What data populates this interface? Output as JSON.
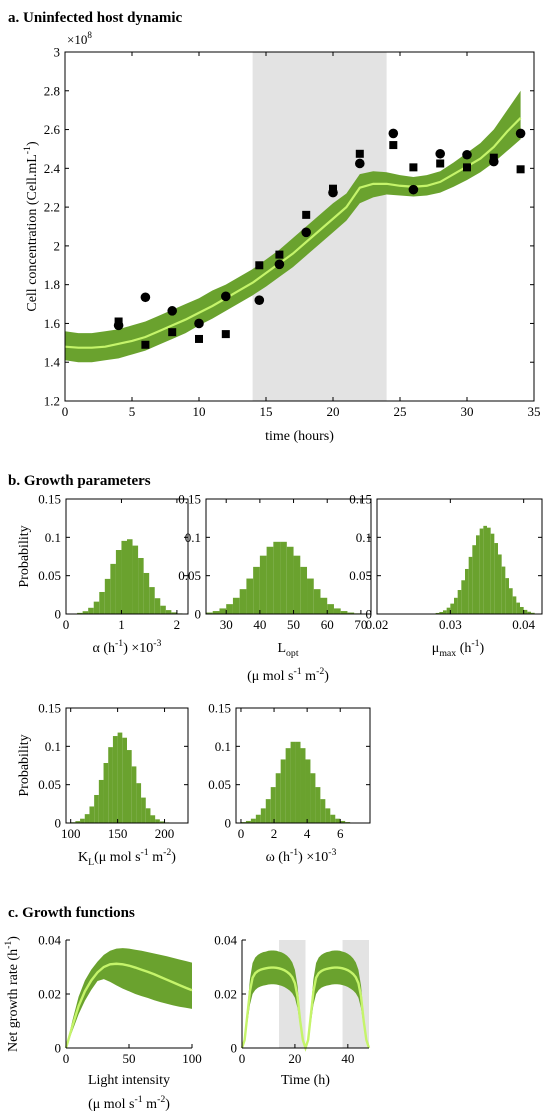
{
  "colors": {
    "band": "#6aa22e",
    "mean": "#c5f46a",
    "shade": "#e3e3e3",
    "bars": "#6aa22e"
  },
  "chart_data": [
    {
      "id": "a",
      "type": "line",
      "title": "a. Uninfected host dynamic",
      "exponent": "×10",
      "exponent_power": "8",
      "xlabel": "time (hours)",
      "ylabel": "Cell concentration (Cell.mL",
      "ylabel_sup": "-1",
      "ylabel_end": ")",
      "xlim": [
        0,
        35
      ],
      "ylim": [
        1.2,
        3.0
      ],
      "xticks": [
        0,
        5,
        10,
        15,
        20,
        25,
        30,
        35
      ],
      "yticks": [
        1.2,
        1.4,
        1.6,
        1.8,
        2,
        2.2,
        2.4,
        2.6,
        2.8,
        3
      ],
      "shaded_x": [
        [
          14,
          24
        ]
      ],
      "model_x": [
        0,
        1,
        2,
        3,
        4,
        5,
        6,
        7,
        8,
        9,
        10,
        11,
        12,
        13,
        14,
        15,
        16,
        17,
        18,
        19,
        20,
        21,
        22,
        23,
        24,
        25,
        26,
        27,
        28,
        29,
        30,
        31,
        32,
        33,
        34
      ],
      "model_mean": [
        1.48,
        1.475,
        1.475,
        1.48,
        1.495,
        1.51,
        1.53,
        1.56,
        1.59,
        1.62,
        1.655,
        1.69,
        1.73,
        1.77,
        1.81,
        1.86,
        1.91,
        1.96,
        2.02,
        2.08,
        2.14,
        2.2,
        2.3,
        2.32,
        2.32,
        2.31,
        2.305,
        2.31,
        2.33,
        2.37,
        2.41,
        2.45,
        2.51,
        2.59,
        2.66
      ],
      "band_lower": [
        1.41,
        1.4,
        1.4,
        1.41,
        1.42,
        1.44,
        1.46,
        1.49,
        1.52,
        1.55,
        1.59,
        1.625,
        1.665,
        1.705,
        1.745,
        1.79,
        1.84,
        1.89,
        1.95,
        2.01,
        2.07,
        2.13,
        2.22,
        2.25,
        2.265,
        2.26,
        2.255,
        2.26,
        2.275,
        2.305,
        2.34,
        2.38,
        2.43,
        2.49,
        2.55
      ],
      "band_upper": [
        1.56,
        1.55,
        1.55,
        1.56,
        1.57,
        1.59,
        1.61,
        1.64,
        1.67,
        1.7,
        1.73,
        1.77,
        1.8,
        1.84,
        1.88,
        1.93,
        1.98,
        2.04,
        2.1,
        2.16,
        2.22,
        2.27,
        2.37,
        2.385,
        2.38,
        2.365,
        2.355,
        2.365,
        2.385,
        2.43,
        2.48,
        2.53,
        2.6,
        2.7,
        2.8
      ],
      "series": [
        {
          "marker": "circle",
          "x": [
            4,
            6,
            8,
            10,
            12,
            14.5,
            16,
            18,
            20,
            22,
            24.5,
            26,
            28,
            30,
            32,
            34
          ],
          "y": [
            1.59,
            1.735,
            1.665,
            1.6,
            1.74,
            1.72,
            1.905,
            2.07,
            2.275,
            2.425,
            2.58,
            2.29,
            2.475,
            2.47,
            2.435,
            2.58
          ]
        },
        {
          "marker": "square",
          "x": [
            4,
            6,
            8,
            10,
            12,
            14.5,
            16,
            18,
            20,
            22,
            24.5,
            26,
            28,
            30,
            32,
            34
          ],
          "y": [
            1.61,
            1.49,
            1.555,
            1.52,
            1.545,
            1.9,
            1.955,
            2.16,
            2.295,
            2.475,
            2.52,
            2.405,
            2.425,
            2.405,
            2.455,
            2.395
          ]
        }
      ]
    },
    {
      "id": "alpha",
      "type": "bar",
      "section_title": "b. Growth parameters",
      "ylabel": "Probability",
      "xlabel": "α (h",
      "xlabel_sup": "-1",
      "xlabel_end": ") ×10",
      "xlabel_sup2": "-3",
      "xlim": [
        0,
        2.2
      ],
      "ylim": [
        0,
        0.15
      ],
      "xticks": [
        0,
        1,
        2
      ],
      "yticks": [
        0,
        0.05,
        0.1,
        0.15
      ],
      "center": 1.12,
      "sd": 0.3,
      "peak": 0.098,
      "bin_width": 0.1
    },
    {
      "id": "lopt",
      "type": "bar",
      "xlabel": "L",
      "xlabel_sub": "opt",
      "xlabel_line2": "(μ mol s",
      "xlabel_line2_sup": "-1",
      "xlabel_line2_mid": " m",
      "xlabel_line2_sup2": "-2",
      "xlabel_line2_end": ")",
      "xlim": [
        24,
        73
      ],
      "ylim": [
        0,
        0.15
      ],
      "xticks": [
        30,
        40,
        50,
        60,
        70
      ],
      "yticks": [
        0,
        0.05,
        0.1,
        0.15
      ],
      "center": 46,
      "sd": 7.5,
      "peak": 0.095,
      "bin_width": 2
    },
    {
      "id": "mumax",
      "type": "bar",
      "xlabel": "μ",
      "xlabel_sub": "max",
      "xlabel_end": " (h",
      "xlabel_sup": "-1",
      "xlabel_end2": ")",
      "xlim": [
        0.02,
        0.0425
      ],
      "ylim": [
        0,
        0.15
      ],
      "xticks": [
        0.02,
        0.03,
        0.04
      ],
      "yticks": [
        0,
        0.05,
        0.1,
        0.15
      ],
      "center": 0.0348,
      "sd": 0.0022,
      "peak": 0.115,
      "bin_width": 0.0005
    },
    {
      "id": "kl",
      "type": "bar",
      "ylabel": "Probability",
      "xlabel": "K",
      "xlabel_sub": "L",
      "xlabel_end": "(μ mol s",
      "xlabel_sup": "-1",
      "xlabel_mid": " m",
      "xlabel_sup2": "-2",
      "xlabel_end2": ")",
      "xlim": [
        95,
        225
      ],
      "ylim": [
        0,
        0.15
      ],
      "xticks": [
        100,
        150,
        200
      ],
      "yticks": [
        0,
        0.05,
        0.1,
        0.15
      ],
      "center": 152,
      "sd": 16,
      "peak": 0.118,
      "bin_width": 5
    },
    {
      "id": "omega",
      "type": "bar",
      "xlabel": "ω (h",
      "xlabel_sup": "-1",
      "xlabel_end": ") ×10",
      "xlabel_sup2": "-3",
      "xlim": [
        -0.3,
        7.8
      ],
      "ylim": [
        0,
        0.15
      ],
      "xticks": [
        0,
        2,
        4,
        6
      ],
      "yticks": [
        0,
        0.05,
        0.1,
        0.15
      ],
      "center": 3.3,
      "sd": 1.05,
      "peak": 0.107,
      "bin_width": 0.3
    },
    {
      "id": "light",
      "type": "line",
      "section_title": "c. Growth functions",
      "ylabel": "Net growth rate (h",
      "ylabel_sup": "-1",
      "ylabel_end": ")",
      "xlabel": "Light intensity",
      "xlabel_line2": "(μ mol s",
      "xlabel_line2_sup": "-1",
      "xlabel_line2_mid": " m",
      "xlabel_line2_sup2": "-2",
      "xlabel_line2_end": ")",
      "xlim": [
        0,
        100
      ],
      "ylim": [
        0,
        0.04
      ],
      "xticks": [
        0,
        50,
        100
      ],
      "yticks": [
        0,
        0.02,
        0.04
      ],
      "x": [
        0,
        5,
        10,
        15,
        20,
        25,
        30,
        35,
        40,
        45,
        50,
        55,
        60,
        65,
        70,
        75,
        80,
        85,
        90,
        95,
        100
      ],
      "mean": [
        0,
        0.008,
        0.0155,
        0.021,
        0.025,
        0.028,
        0.03,
        0.031,
        0.0312,
        0.031,
        0.0305,
        0.0298,
        0.029,
        0.0282,
        0.0273,
        0.0263,
        0.0253,
        0.0243,
        0.0233,
        0.0223,
        0.0214
      ],
      "lower": [
        0,
        0.0062,
        0.0125,
        0.0175,
        0.0215,
        0.0248,
        0.0255,
        0.0245,
        0.0232,
        0.022,
        0.021,
        0.02,
        0.0192,
        0.0185,
        0.0177,
        0.017,
        0.0164,
        0.0158,
        0.0153,
        0.0149,
        0.0145
      ],
      "upper": [
        0,
        0.01,
        0.019,
        0.025,
        0.029,
        0.032,
        0.0345,
        0.036,
        0.0368,
        0.037,
        0.0368,
        0.0364,
        0.036,
        0.0355,
        0.035,
        0.0345,
        0.034,
        0.0334,
        0.0328,
        0.0322,
        0.0316
      ]
    },
    {
      "id": "time",
      "type": "line",
      "xlabel": "Time (h)",
      "xlim": [
        0,
        48
      ],
      "ylim": [
        0,
        0.04
      ],
      "xticks": [
        0,
        20,
        40
      ],
      "yticks": [
        0,
        0.02,
        0.04
      ],
      "shaded_x": [
        [
          14,
          24
        ],
        [
          38,
          48
        ]
      ],
      "x": [
        0,
        1,
        2,
        3,
        4,
        5,
        6,
        7,
        8,
        9,
        10,
        11,
        12,
        13,
        14,
        15,
        16,
        17,
        18,
        19,
        20,
        21,
        22,
        23,
        24,
        25,
        26,
        27,
        28,
        29,
        30,
        31,
        32,
        33,
        34,
        35,
        36,
        37,
        38,
        39,
        40,
        41,
        42,
        43,
        44,
        45,
        46,
        47,
        48
      ],
      "mean": [
        0,
        0.003,
        0.012,
        0.021,
        0.026,
        0.0277,
        0.0285,
        0.029,
        0.0293,
        0.0295,
        0.0297,
        0.0298,
        0.0298,
        0.0297,
        0.0295,
        0.0292,
        0.0288,
        0.0282,
        0.0274,
        0.0262,
        0.024,
        0.019,
        0.01,
        0.003,
        0,
        0.003,
        0.012,
        0.021,
        0.026,
        0.0277,
        0.0285,
        0.029,
        0.0293,
        0.0295,
        0.0297,
        0.0298,
        0.0298,
        0.0297,
        0.0295,
        0.0292,
        0.0288,
        0.0282,
        0.0274,
        0.0262,
        0.024,
        0.019,
        0.01,
        0.003,
        0
      ],
      "lower": [
        0,
        0.0022,
        0.009,
        0.016,
        0.02,
        0.0215,
        0.0223,
        0.0228,
        0.0231,
        0.0233,
        0.0235,
        0.0236,
        0.0236,
        0.0235,
        0.0233,
        0.023,
        0.0226,
        0.022,
        0.0213,
        0.0203,
        0.0186,
        0.0147,
        0.0078,
        0.0022,
        0,
        0.0022,
        0.009,
        0.016,
        0.02,
        0.0215,
        0.0223,
        0.0228,
        0.0231,
        0.0233,
        0.0235,
        0.0236,
        0.0236,
        0.0235,
        0.0233,
        0.023,
        0.0226,
        0.022,
        0.0213,
        0.0203,
        0.0186,
        0.0147,
        0.0078,
        0.0022,
        0
      ],
      "upper": [
        0,
        0.0037,
        0.0145,
        0.0255,
        0.0315,
        0.0335,
        0.0345,
        0.0351,
        0.0355,
        0.0357,
        0.036,
        0.0361,
        0.0361,
        0.036,
        0.0357,
        0.0354,
        0.0349,
        0.0342,
        0.0332,
        0.0317,
        0.029,
        0.023,
        0.0121,
        0.0037,
        0,
        0.0037,
        0.0145,
        0.0255,
        0.0315,
        0.0335,
        0.0345,
        0.0351,
        0.0355,
        0.0357,
        0.036,
        0.0361,
        0.0361,
        0.036,
        0.0357,
        0.0354,
        0.0349,
        0.0342,
        0.0332,
        0.0317,
        0.029,
        0.023,
        0.0121,
        0.0037,
        0
      ]
    }
  ]
}
